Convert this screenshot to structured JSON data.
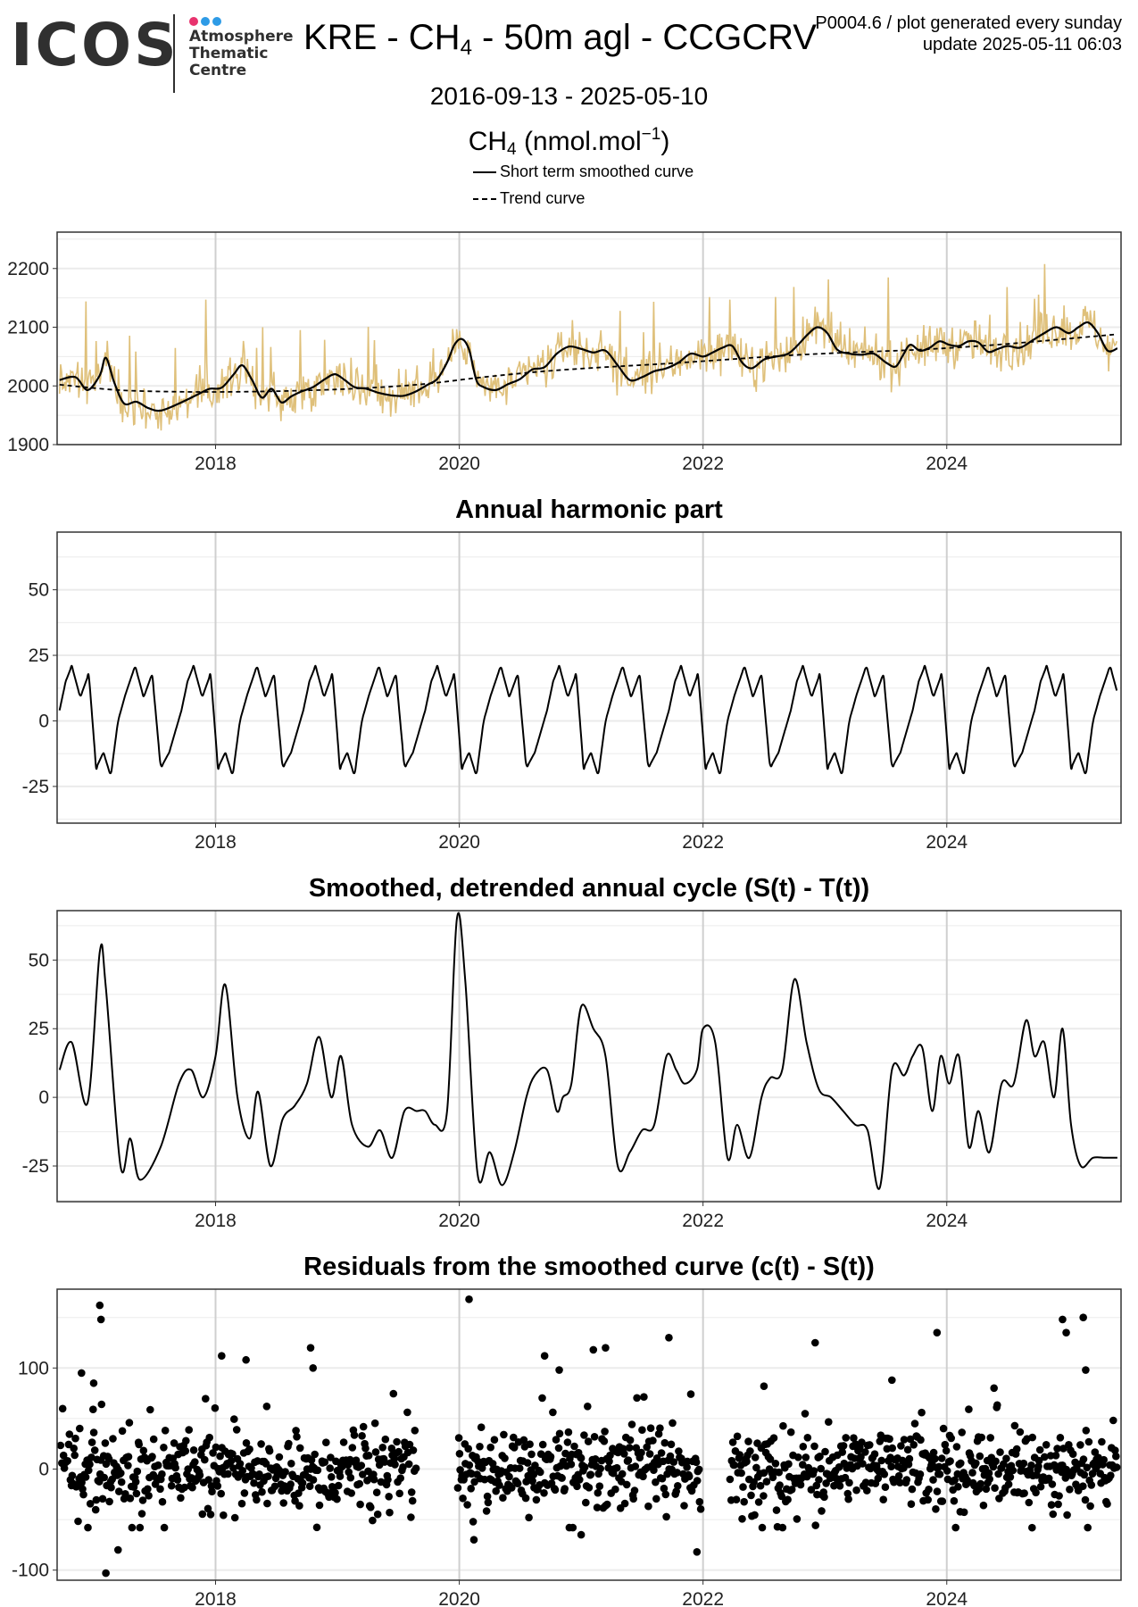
{
  "header": {
    "logo_text": "ICOS",
    "logo_lines": [
      "Atmosphere",
      "Thematic",
      "Centre"
    ],
    "logo_dot_colors": [
      "#e8336e",
      "#2e9be6",
      "#2e9be6"
    ],
    "title_pre": "KRE - CH",
    "title_sub": "4",
    "title_post": " - 50m agl - CCGCRV",
    "meta_line1": "P0004.6 / plot generated every sunday",
    "meta_line2": "update  2025-05-11 06:03",
    "date_range": "2016-09-13 - 2025-05-10",
    "unit_pre": "CH",
    "unit_sub": "4",
    "unit_mid": " (nmol.mol",
    "unit_sup": "−1",
    "unit_post": ")",
    "legend_solid": "Short term smoothed curve",
    "legend_dashed": "Trend curve"
  },
  "colors": {
    "raw": "#dfc07a",
    "curve": "#000000",
    "grid_major": "#cfcfcf",
    "grid_minor": "#ebebeb",
    "panel_border": "#333333"
  },
  "chart_data": [
    {
      "type": "line",
      "title": "",
      "xlim": [
        2016.7,
        2025.43
      ],
      "ylim": [
        1900,
        2262
      ],
      "x_ticks": [
        2018,
        2020,
        2022,
        2024
      ],
      "x_tick_labels": [
        "2018",
        "2020",
        "2022",
        "2024"
      ],
      "y_ticks": [
        1900,
        2000,
        2100,
        2200
      ],
      "y_tick_labels": [
        "1900",
        "2000",
        "2100",
        "2200"
      ],
      "grid": true,
      "series": [
        {
          "name": "Short term smoothed curve",
          "style": "solid",
          "x": [
            2016.72,
            2016.85,
            2016.95,
            2017.05,
            2017.1,
            2017.17,
            2017.25,
            2017.35,
            2017.45,
            2017.55,
            2017.7,
            2017.85,
            2017.95,
            2018.05,
            2018.15,
            2018.22,
            2018.3,
            2018.38,
            2018.46,
            2018.54,
            2018.62,
            2018.7,
            2018.8,
            2018.9,
            2018.98,
            2019.06,
            2019.14,
            2019.24,
            2019.34,
            2019.44,
            2019.54,
            2019.64,
            2019.74,
            2019.82,
            2019.9,
            2019.96,
            2020.02,
            2020.08,
            2020.14,
            2020.2,
            2020.3,
            2020.4,
            2020.5,
            2020.6,
            2020.7,
            2020.8,
            2020.9,
            2021.0,
            2021.1,
            2021.2,
            2021.3,
            2021.4,
            2021.5,
            2021.6,
            2021.7,
            2021.8,
            2021.9,
            2022.0,
            2022.08,
            2022.16,
            2022.24,
            2022.32,
            2022.4,
            2022.5,
            2022.6,
            2022.7,
            2022.78,
            2022.86,
            2022.94,
            2023.02,
            2023.1,
            2023.2,
            2023.3,
            2023.4,
            2023.5,
            2023.58,
            2023.64,
            2023.7,
            2023.78,
            2023.86,
            2023.94,
            2024.02,
            2024.1,
            2024.18,
            2024.26,
            2024.34,
            2024.42,
            2024.5,
            2024.6,
            2024.7,
            2024.8,
            2024.9,
            2025.0,
            2025.08,
            2025.16,
            2025.24,
            2025.32,
            2025.4
          ],
          "y": [
            2010,
            2015,
            1993,
            2018,
            2048,
            2005,
            1970,
            1973,
            1962,
            1958,
            1970,
            1985,
            1995,
            1997,
            2020,
            2035,
            2010,
            1980,
            1995,
            1972,
            1982,
            1990,
            1998,
            2012,
            2020,
            2010,
            1998,
            1995,
            1988,
            1984,
            1983,
            1990,
            2002,
            2012,
            2040,
            2070,
            2080,
            2062,
            2010,
            1998,
            1993,
            2003,
            2012,
            2028,
            2032,
            2055,
            2067,
            2063,
            2057,
            2060,
            2035,
            2010,
            2015,
            2025,
            2030,
            2040,
            2055,
            2050,
            2057,
            2065,
            2068,
            2040,
            2030,
            2045,
            2050,
            2055,
            2070,
            2088,
            2100,
            2090,
            2062,
            2055,
            2053,
            2055,
            2040,
            2033,
            2052,
            2070,
            2060,
            2065,
            2076,
            2070,
            2068,
            2076,
            2074,
            2058,
            2063,
            2068,
            2065,
            2077,
            2090,
            2100,
            2090,
            2100,
            2108,
            2090,
            2060,
            2064
          ]
        },
        {
          "name": "Trend curve",
          "style": "dashed",
          "x": [
            2016.72,
            2017.2,
            2017.7,
            2018.2,
            2018.7,
            2019.2,
            2019.7,
            2020.2,
            2020.7,
            2021.2,
            2021.7,
            2022.2,
            2022.7,
            2023.2,
            2023.7,
            2024.2,
            2024.7,
            2025.4
          ],
          "y": [
            2002,
            1993,
            1990,
            1990,
            1992,
            1996,
            2003,
            2015,
            2025,
            2032,
            2038,
            2045,
            2052,
            2057,
            2061,
            2067,
            2075,
            2088
          ]
        }
      ]
    },
    {
      "type": "line",
      "title": "Annual harmonic part",
      "xlim": [
        2016.7,
        2025.43
      ],
      "ylim": [
        -39,
        72
      ],
      "x_ticks": [
        2018,
        2020,
        2022,
        2024
      ],
      "x_tick_labels": [
        "2018",
        "2020",
        "2022",
        "2024"
      ],
      "y_ticks": [
        -25,
        0,
        25,
        50
      ],
      "y_tick_labels": [
        "-25",
        "0",
        "25",
        "50"
      ],
      "grid": true,
      "start_year": 2016.72,
      "end_year": 2025.4,
      "annual_cycle": {
        "phase": [
          0.0,
          0.05,
          0.1,
          0.17,
          0.24,
          0.3,
          0.36,
          0.42,
          0.48,
          0.54,
          0.62,
          0.69,
          0.76,
          0.83,
          0.9,
          1.0
        ],
        "value": [
          4,
          15,
          21,
          9,
          18,
          -18,
          -12,
          -21,
          0,
          10,
          21,
          9,
          18,
          -18,
          -12,
          4
        ]
      }
    },
    {
      "type": "line",
      "title": "Smoothed, detrended annual cycle (S(t) - T(t))",
      "xlim": [
        2016.7,
        2025.43
      ],
      "ylim": [
        -38,
        68
      ],
      "x_ticks": [
        2018,
        2020,
        2022,
        2024
      ],
      "x_tick_labels": [
        "2018",
        "2020",
        "2022",
        "2024"
      ],
      "y_ticks": [
        -25,
        0,
        25,
        50
      ],
      "y_tick_labels": [
        "-25",
        "0",
        "25",
        "50"
      ],
      "grid": true,
      "x": [
        2016.72,
        2016.82,
        2016.95,
        2017.05,
        2017.1,
        2017.22,
        2017.3,
        2017.38,
        2017.55,
        2017.7,
        2017.8,
        2017.9,
        2018.0,
        2018.08,
        2018.18,
        2018.28,
        2018.35,
        2018.45,
        2018.55,
        2018.65,
        2018.75,
        2018.85,
        2018.95,
        2019.03,
        2019.12,
        2019.25,
        2019.35,
        2019.45,
        2019.55,
        2019.65,
        2019.72,
        2019.8,
        2019.9,
        2019.98,
        2020.05,
        2020.15,
        2020.25,
        2020.35,
        2020.45,
        2020.55,
        2020.62,
        2020.72,
        2020.8,
        2020.85,
        2020.92,
        2021.0,
        2021.1,
        2021.2,
        2021.3,
        2021.4,
        2021.5,
        2021.6,
        2021.7,
        2021.78,
        2021.85,
        2021.95,
        2022.0,
        2022.1,
        2022.2,
        2022.28,
        2022.38,
        2022.48,
        2022.55,
        2022.65,
        2022.75,
        2022.85,
        2022.95,
        2023.05,
        2023.15,
        2023.25,
        2023.35,
        2023.45,
        2023.55,
        2023.65,
        2023.72,
        2023.8,
        2023.88,
        2023.95,
        2024.02,
        2024.1,
        2024.18,
        2024.26,
        2024.35,
        2024.45,
        2024.55,
        2024.65,
        2024.72,
        2024.8,
        2024.88,
        2024.95,
        2025.02,
        2025.1,
        2025.2,
        2025.3,
        2025.4
      ],
      "y": [
        10,
        20,
        -2,
        53,
        40,
        -25,
        -15,
        -30,
        -18,
        5,
        10,
        0,
        15,
        41,
        0,
        -15,
        2,
        -25,
        -8,
        -3,
        5,
        22,
        0,
        15,
        -10,
        -18,
        -12,
        -22,
        -5,
        -5,
        -5,
        -10,
        -5,
        65,
        42,
        -28,
        -20,
        -32,
        -20,
        0,
        8,
        10,
        -5,
        0,
        5,
        33,
        25,
        15,
        -25,
        -20,
        -12,
        -10,
        15,
        10,
        5,
        10,
        25,
        20,
        -22,
        -10,
        -22,
        0,
        7,
        10,
        43,
        20,
        3,
        0,
        -5,
        -10,
        -12,
        -33,
        10,
        8,
        15,
        18,
        -5,
        15,
        5,
        15,
        -18,
        -5,
        -20,
        5,
        5,
        28,
        15,
        20,
        0,
        25,
        -10,
        -25,
        -22,
        -22,
        -22
      ]
    },
    {
      "type": "scatter",
      "title": "Residuals from the smoothed curve (c(t) - S(t))",
      "xlim": [
        2016.7,
        2025.43
      ],
      "ylim": [
        -110,
        178
      ],
      "x_ticks": [
        2018,
        2020,
        2022,
        2024
      ],
      "x_tick_labels": [
        "2018",
        "2020",
        "2022",
        "2024"
      ],
      "y_ticks": [
        -100,
        0,
        100
      ],
      "y_tick_labels": [
        "-100",
        "0",
        "100"
      ],
      "grid": true,
      "gaps": [
        [
          2019.65,
          2019.98
        ],
        [
          2021.98,
          2022.22
        ]
      ],
      "daily_spread": 32,
      "outliers": {
        "x": [
          2016.9,
          2017.0,
          2017.05,
          2017.06,
          2017.2,
          2018.05,
          2018.25,
          2018.42,
          2018.78,
          2018.8,
          2020.08,
          2020.7,
          2020.82,
          2021.1,
          2021.2,
          2021.72,
          2022.5,
          2022.92,
          2023.55,
          2023.92,
          2024.95,
          2024.98,
          2025.12,
          2025.14,
          2017.1,
          2020.12,
          2021.0,
          2021.95,
          2024.7
        ],
        "y": [
          95,
          85,
          162,
          148,
          -80,
          112,
          108,
          62,
          120,
          100,
          168,
          112,
          98,
          118,
          120,
          130,
          82,
          125,
          88,
          135,
          148,
          135,
          150,
          98,
          -103,
          -70,
          -65,
          -82,
          -58
        ]
      }
    }
  ]
}
